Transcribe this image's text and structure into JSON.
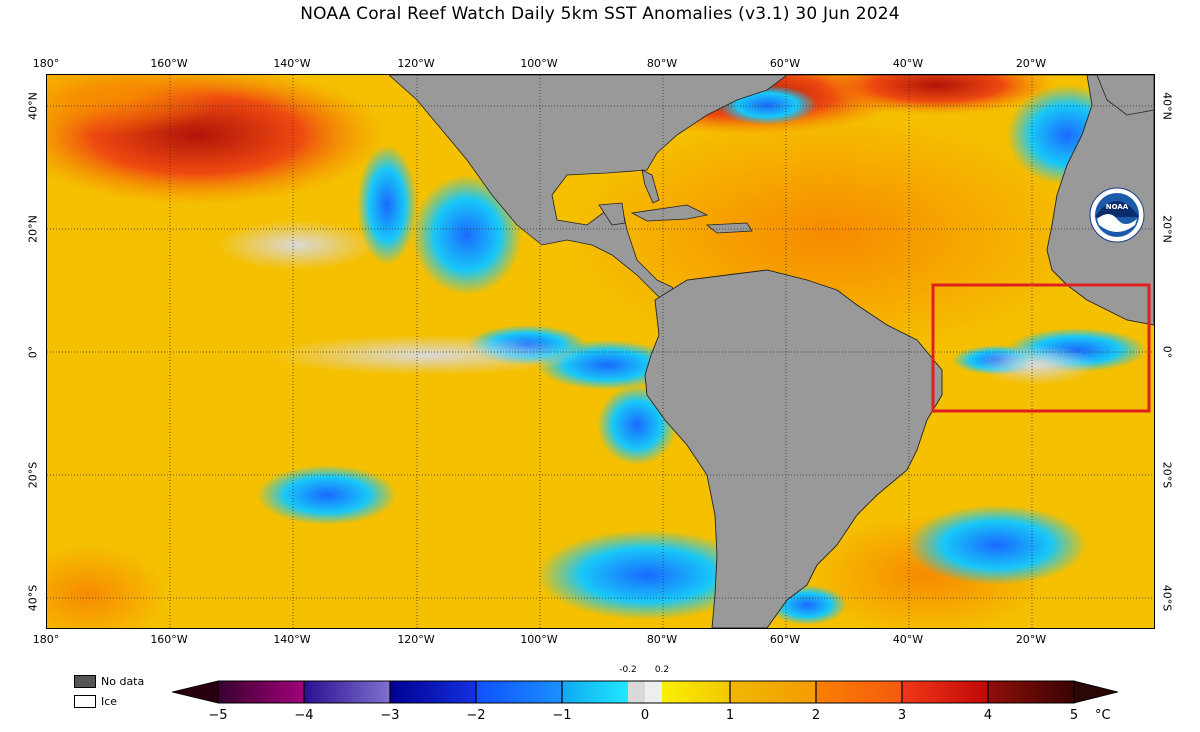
{
  "title": "NOAA Coral Reef Watch Daily 5km SST Anomalies  (v3.1)   30 Jun 2024",
  "lon_ticks": [
    "180°",
    "160°W",
    "140°W",
    "120°W",
    "100°W",
    "80°W",
    "60°W",
    "40°W",
    "20°W"
  ],
  "lat_ticks": [
    "40°N",
    "20°N",
    "0°",
    "20°S",
    "40°S"
  ],
  "logo": {
    "text": "NOAA",
    "name": "noaa-logo"
  },
  "legend": {
    "no_data": "No data",
    "ice": "Ice"
  },
  "colorbar": {
    "ticks": [
      "−5",
      "−4",
      "−3",
      "−2",
      "−1",
      "0",
      "1",
      "2",
      "3",
      "4",
      "5"
    ],
    "small_ticks": [
      "-0.2",
      "0.2"
    ],
    "unit": "°C",
    "colors": {
      "min_end": "#280010",
      "max_end": "#2a0606",
      "neg5": "#5c005c",
      "neg4": "#4a1ea0",
      "neg3": "#0d14b8",
      "neg2": "#1a6aff",
      "neg1": "#18c8f8",
      "neutral": "#d9d9d9",
      "pos0": "#f0e400",
      "pos1": "#f3c000",
      "pos2": "#f78a00",
      "pos3": "#ee3a10",
      "pos4": "#b01408",
      "pos5": "#4a0404"
    }
  },
  "highlight_box_color": "#e02020",
  "land_color": "#999999",
  "nodata_color": "#555555"
}
